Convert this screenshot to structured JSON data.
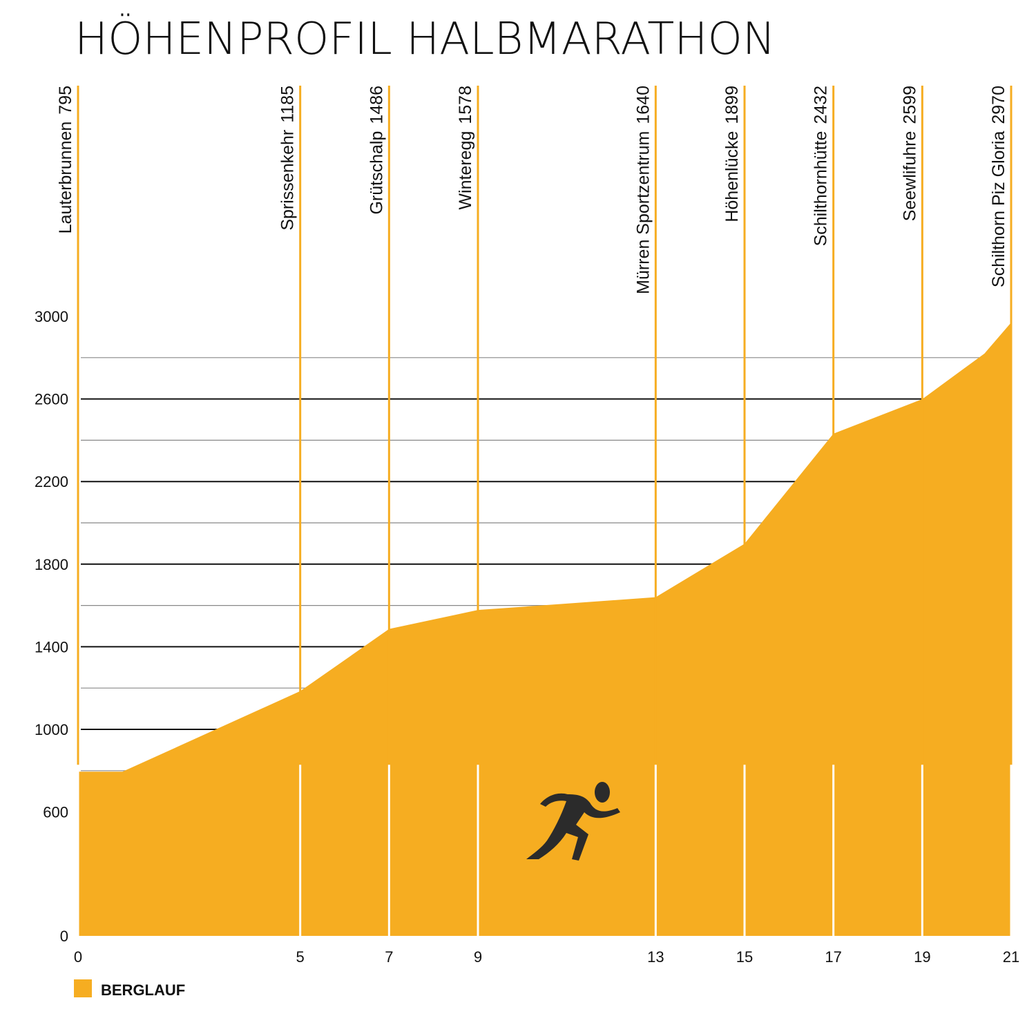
{
  "chart_data": {
    "type": "area",
    "title": "HÖHENPROFIL HALBMARATHON",
    "xlabel": "",
    "ylabel": "",
    "xlim": [
      0,
      21
    ],
    "ylim": [
      0,
      3000
    ],
    "y_ticks": [
      0,
      600,
      1000,
      1400,
      1800,
      2200,
      2600,
      3000
    ],
    "y_minor_grid": [
      800,
      1200,
      1600,
      2000,
      2400,
      2800
    ],
    "x_ticks": [
      0,
      5,
      7,
      9,
      13,
      15,
      17,
      19,
      21
    ],
    "grid": true,
    "fill_color": "#F6AD21",
    "grid_color": "#111111",
    "stations": [
      {
        "x": 0,
        "name": "Lauterbrunnen",
        "elevation_label": "795"
      },
      {
        "x": 5,
        "name": "Sprissenkehr",
        "elevation_label": "1185"
      },
      {
        "x": 7,
        "name": "Grütschalp",
        "elevation_label": "1486"
      },
      {
        "x": 9,
        "name": "Winteregg",
        "elevation_label": "1578"
      },
      {
        "x": 13,
        "name": "Mürren Sportzentrum",
        "elevation_label": "1640"
      },
      {
        "x": 15,
        "name": "Höhenlücke",
        "elevation_label": "1899"
      },
      {
        "x": 17,
        "name": "Schilthornhütte",
        "elevation_label": "2432"
      },
      {
        "x": 19,
        "name": "Seewlifuhre",
        "elevation_label": "2599"
      },
      {
        "x": 21,
        "name": "Schilthorn Piz Gloria",
        "elevation_label": "2970"
      }
    ],
    "series": [
      {
        "name": "BERGLAUF",
        "x": [
          0,
          1,
          5,
          7,
          9,
          13,
          15,
          17,
          19,
          20.4,
          21
        ],
        "y": [
          795,
          795,
          1185,
          1486,
          1578,
          1640,
          1899,
          2432,
          2599,
          2820,
          2970
        ]
      }
    ],
    "legend": {
      "placement": "bottom-left",
      "label": "BERGLAUF",
      "color": "#F6AD21"
    },
    "icon": "runner-icon"
  }
}
